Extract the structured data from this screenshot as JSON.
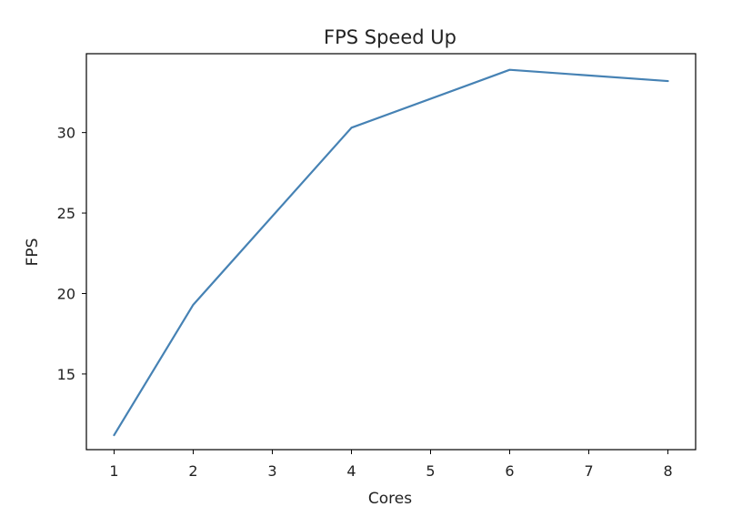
{
  "chart_data": {
    "type": "line",
    "title": "FPS Speed Up",
    "xlabel": "Cores",
    "ylabel": "FPS",
    "x": [
      1,
      2,
      4,
      6,
      8
    ],
    "series": [
      {
        "values": [
          11.2,
          19.3,
          30.3,
          33.9,
          33.2
        ],
        "color": "#4682b4"
      }
    ],
    "xlim": [
      0.65,
      8.35
    ],
    "ylim": [
      10.3,
      34.9
    ],
    "xticks": [
      1,
      2,
      3,
      4,
      5,
      6,
      7,
      8
    ],
    "yticks": [
      15,
      20,
      25,
      30
    ],
    "grid": false,
    "legend": "none"
  }
}
